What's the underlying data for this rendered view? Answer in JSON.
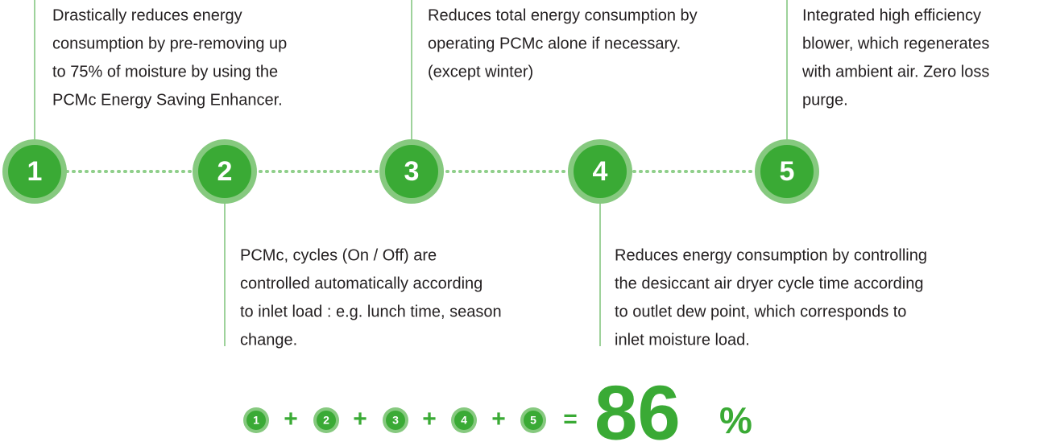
{
  "steps": [
    {
      "number": "1",
      "lines": [
        "Drastically reduces energy",
        "consumption by pre-removing up",
        "to 75% of moisture by using the",
        "PCMc Energy Saving Enhancer."
      ]
    },
    {
      "number": "2",
      "lines": [
        "PCMc, cycles (On / Off) are",
        "controlled automatically according",
        "to inlet load : e.g. lunch time, season",
        "change."
      ]
    },
    {
      "number": "3",
      "lines": [
        "Reduces total energy consumption by",
        "operating PCMc  alone if necessary.",
        "(except winter)"
      ]
    },
    {
      "number": "4",
      "lines": [
        "Reduces energy consumption by controlling",
        "the desiccant air dryer cycle time according",
        "to outlet dew point, which corresponds to",
        "inlet moisture load."
      ]
    },
    {
      "number": "5",
      "lines": [
        "Integrated high efficiency",
        "blower, which regenerates",
        "with ambient air. Zero loss",
        "purge."
      ]
    }
  ],
  "formula": {
    "plus": "+",
    "equals": "=",
    "result": "86",
    "unit": "%"
  }
}
